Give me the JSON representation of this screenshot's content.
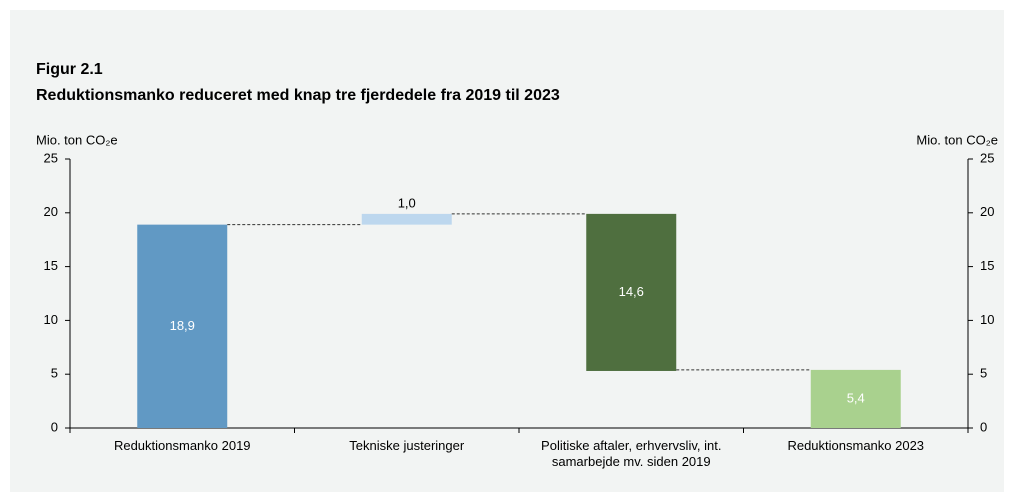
{
  "chart_data": {
    "type": "waterfall",
    "title": "Figur 2.1",
    "subtitle": "Reduktionsmanko reduceret med knap tre fjerdedele fra 2019 til 2023",
    "ylabel": "Mio. ton CO₂e",
    "y2label": "Mio. ton CO₂e",
    "categories": [
      "Reduktionsmanko 2019",
      "Tekniske justeringer",
      "Politiske aftaler, erhvervsliv, int. samarbejde mv. siden 2019",
      "Reduktionsmanko 2023"
    ],
    "values": [
      18.9,
      1.0,
      -14.6,
      5.4
    ],
    "value_labels": [
      "18,9",
      "1,0",
      "14,6",
      "5,4"
    ],
    "measures": [
      "absolute",
      "relative",
      "relative",
      "total"
    ],
    "colors": [
      "#6199c4",
      "#bdd7ee",
      "#4f6f3f",
      "#a9d18e"
    ],
    "ylim": [
      0,
      25
    ],
    "yticks": [
      0,
      5,
      10,
      15,
      20,
      25
    ],
    "y2lim": [
      0,
      25
    ],
    "y2ticks": [
      0,
      5,
      10,
      15,
      20,
      25
    ]
  }
}
